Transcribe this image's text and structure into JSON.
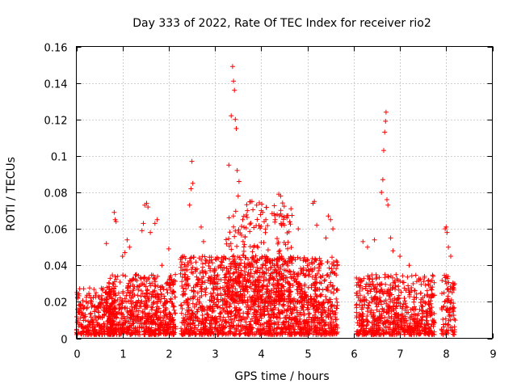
{
  "chart_data": {
    "type": "scatter",
    "title": "Day 333 of 2022, Rate Of TEC Index for receiver rio2",
    "xlabel": "GPS time / hours",
    "ylabel": "ROTI / TECUs",
    "xlim": [
      0,
      9
    ],
    "ylim": [
      0,
      0.16
    ],
    "grid": true,
    "x_ticks": [
      0,
      1,
      2,
      3,
      4,
      5,
      6,
      7,
      8,
      9
    ],
    "x_tick_labels": [
      "0",
      "1",
      "2",
      "3",
      "4",
      "5",
      "6",
      "7",
      "8",
      "9"
    ],
    "y_ticks": [
      0,
      0.02,
      0.04,
      0.06,
      0.08,
      0.1,
      0.12,
      0.14,
      0.16
    ],
    "y_tick_labels": [
      "0",
      "0.02",
      "0.04",
      "0.06",
      "0.08",
      "0.1",
      "0.12",
      "0.14",
      "0.16"
    ],
    "marker": "plus",
    "color": "#ff0000",
    "series": [
      {
        "name": "rio2 ROTI",
        "note": "dense cloud: clusters describe contiguous observation blocks (hours range, typical ROTI range, density)",
        "clusters": [
          {
            "x": [
              0.0,
              0.85
            ],
            "y": [
              0.002,
              0.028
            ],
            "n": 320
          },
          {
            "x": [
              0.7,
              2.15
            ],
            "y": [
              0.002,
              0.035
            ],
            "n": 650
          },
          {
            "x": [
              2.25,
              5.65
            ],
            "y": [
              0.002,
              0.045
            ],
            "n": 1700
          },
          {
            "x": [
              3.2,
              4.7
            ],
            "y": [
              0.02,
              0.075
            ],
            "n": 300
          },
          {
            "x": [
              6.05,
              7.75
            ],
            "y": [
              0.002,
              0.035
            ],
            "n": 700
          },
          {
            "x": [
              7.9,
              8.2
            ],
            "y": [
              0.002,
              0.035
            ],
            "n": 90
          }
        ],
        "points": [
          [
            0.65,
            0.052
          ],
          [
            0.82,
            0.069
          ],
          [
            0.84,
            0.065
          ],
          [
            0.86,
            0.064
          ],
          [
            1.0,
            0.045
          ],
          [
            1.05,
            0.047
          ],
          [
            1.1,
            0.054
          ],
          [
            1.15,
            0.05
          ],
          [
            1.42,
            0.059
          ],
          [
            1.45,
            0.063
          ],
          [
            1.48,
            0.073
          ],
          [
            1.52,
            0.074
          ],
          [
            1.55,
            0.072
          ],
          [
            1.6,
            0.058
          ],
          [
            1.7,
            0.063
          ],
          [
            1.75,
            0.065
          ],
          [
            1.85,
            0.04
          ],
          [
            2.0,
            0.049
          ],
          [
            2.3,
            0.045
          ],
          [
            2.45,
            0.073
          ],
          [
            2.48,
            0.082
          ],
          [
            2.5,
            0.097
          ],
          [
            2.52,
            0.085
          ],
          [
            2.7,
            0.061
          ],
          [
            2.75,
            0.053
          ],
          [
            3.3,
            0.095
          ],
          [
            3.35,
            0.122
          ],
          [
            3.38,
            0.149
          ],
          [
            3.4,
            0.141
          ],
          [
            3.42,
            0.136
          ],
          [
            3.44,
            0.12
          ],
          [
            3.46,
            0.115
          ],
          [
            3.48,
            0.092
          ],
          [
            3.5,
            0.078
          ],
          [
            3.52,
            0.086
          ],
          [
            3.6,
            0.065
          ],
          [
            3.7,
            0.07
          ],
          [
            3.8,
            0.075
          ],
          [
            3.9,
            0.073
          ],
          [
            4.0,
            0.07
          ],
          [
            4.1,
            0.065
          ],
          [
            4.3,
            0.065
          ],
          [
            4.38,
            0.079
          ],
          [
            4.42,
            0.078
          ],
          [
            4.5,
            0.062
          ],
          [
            4.8,
            0.06
          ],
          [
            5.12,
            0.074
          ],
          [
            5.15,
            0.075
          ],
          [
            5.2,
            0.062
          ],
          [
            5.4,
            0.055
          ],
          [
            5.45,
            0.067
          ],
          [
            5.5,
            0.065
          ],
          [
            5.55,
            0.06
          ],
          [
            6.2,
            0.053
          ],
          [
            6.3,
            0.05
          ],
          [
            6.45,
            0.054
          ],
          [
            6.6,
            0.08
          ],
          [
            6.63,
            0.087
          ],
          [
            6.65,
            0.103
          ],
          [
            6.67,
            0.113
          ],
          [
            6.69,
            0.119
          ],
          [
            6.7,
            0.124
          ],
          [
            6.72,
            0.076
          ],
          [
            6.74,
            0.073
          ],
          [
            6.8,
            0.055
          ],
          [
            6.85,
            0.048
          ],
          [
            7.0,
            0.045
          ],
          [
            7.2,
            0.04
          ],
          [
            7.98,
            0.06
          ],
          [
            8.0,
            0.061
          ],
          [
            8.02,
            0.058
          ],
          [
            8.05,
            0.05
          ],
          [
            8.1,
            0.045
          ],
          [
            8.15,
            0.03
          ]
        ]
      }
    ]
  }
}
